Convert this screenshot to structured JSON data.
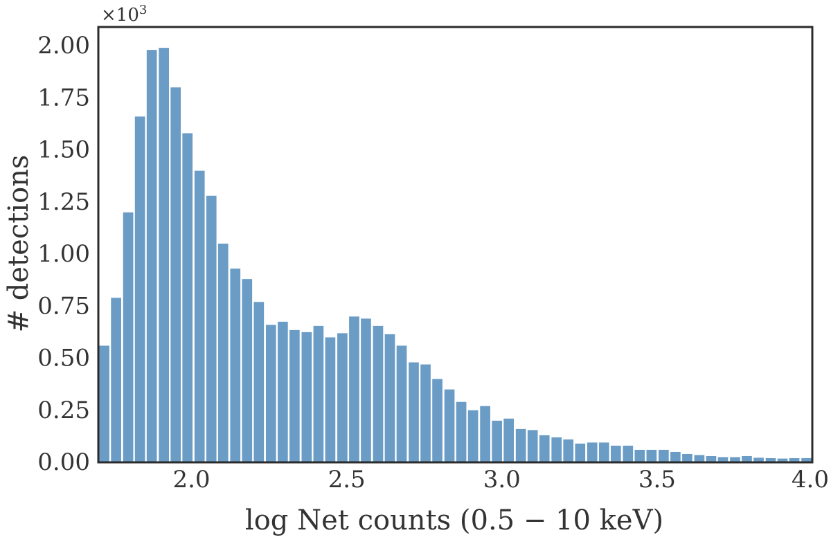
{
  "colors": {
    "bar": "#6a9cc6",
    "frame": "#2b2b2b",
    "text": "#333333",
    "background": "#ffffff"
  },
  "chart_data": {
    "type": "bar",
    "title": "",
    "xlabel": "log Net counts (0.5 − 10 keV)",
    "ylabel": "# detections",
    "y_multiplier_label": "×10",
    "y_multiplier_exponent": "3",
    "xlim": [
      1.7,
      4.0
    ],
    "ylim": [
      0,
      2.09
    ],
    "grid": false,
    "x_ticks": [
      2.0,
      2.5,
      3.0,
      3.5,
      4.0
    ],
    "x_tick_labels": [
      "2.0",
      "2.5",
      "3.0",
      "3.5",
      "4.0"
    ],
    "y_ticks": [
      0,
      0.25,
      0.5,
      0.75,
      1.0,
      1.25,
      1.5,
      1.75,
      2.0
    ],
    "y_tick_labels": [
      "0.00",
      "0.25",
      "0.50",
      "0.75",
      "1.00",
      "1.25",
      "1.50",
      "1.75",
      "2.00"
    ],
    "bin_width": 0.0383,
    "bin_starts": [
      1.7,
      1.738,
      1.777,
      1.815,
      1.853,
      1.892,
      1.93,
      1.968,
      2.007,
      2.045,
      2.083,
      2.122,
      2.16,
      2.198,
      2.237,
      2.275,
      2.313,
      2.352,
      2.39,
      2.428,
      2.467,
      2.505,
      2.543,
      2.582,
      2.62,
      2.658,
      2.697,
      2.735,
      2.773,
      2.812,
      2.85,
      2.888,
      2.927,
      2.965,
      3.003,
      3.042,
      3.08,
      3.118,
      3.157,
      3.195,
      3.233,
      3.272,
      3.31,
      3.348,
      3.387,
      3.425,
      3.463,
      3.502,
      3.54,
      3.578,
      3.617,
      3.655,
      3.693,
      3.732,
      3.77,
      3.808,
      3.847,
      3.885,
      3.923,
      3.962
    ],
    "values": [
      0.56,
      0.79,
      1.2,
      1.66,
      1.98,
      1.99,
      1.8,
      1.58,
      1.4,
      1.28,
      1.05,
      0.93,
      0.88,
      0.77,
      0.66,
      0.675,
      0.635,
      0.625,
      0.655,
      0.6,
      0.62,
      0.7,
      0.69,
      0.655,
      0.615,
      0.56,
      0.48,
      0.47,
      0.4,
      0.35,
      0.29,
      0.25,
      0.27,
      0.2,
      0.21,
      0.16,
      0.155,
      0.13,
      0.12,
      0.11,
      0.09,
      0.095,
      0.095,
      0.08,
      0.08,
      0.06,
      0.06,
      0.06,
      0.05,
      0.04,
      0.035,
      0.03,
      0.025,
      0.025,
      0.03,
      0.022,
      0.02,
      0.018,
      0.02,
      0.02
    ]
  }
}
